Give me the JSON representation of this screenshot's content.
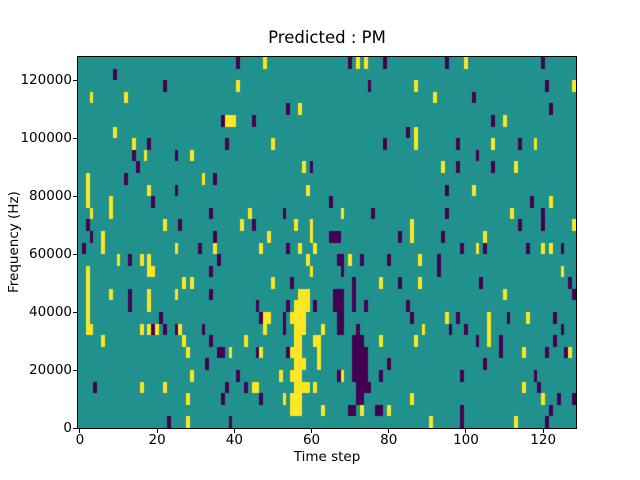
{
  "chart_data": {
    "type": "heatmap",
    "title": "Predicted : PM",
    "xlabel": "Time step",
    "ylabel": "Frequency (Hz)",
    "n_cols": 129,
    "n_rows": 32,
    "x_extent": [
      -0.5,
      128.5
    ],
    "y_extent": [
      0,
      128000
    ],
    "x_ticks": [
      0,
      20,
      40,
      60,
      80,
      100,
      120
    ],
    "x_tick_labels": [
      "0",
      "20",
      "40",
      "60",
      "80",
      "100",
      "120"
    ],
    "y_ticks": [
      0,
      20000,
      40000,
      60000,
      80000,
      100000,
      120000
    ],
    "y_tick_labels": [
      "0",
      "20000",
      "40000",
      "60000",
      "80000",
      "100000",
      "120000"
    ],
    "grid": false,
    "legend": "none",
    "colormap": {
      "name": "viridis",
      "low": "#440154",
      "mid": "#20918c",
      "high": "#fde725"
    },
    "background_value": 1,
    "cell_values": {
      "purple": 0,
      "teal": 1,
      "yellow": 2
    },
    "cells": [
      [
        41,
        31,
        0
      ],
      [
        70,
        31,
        0
      ],
      [
        79,
        31,
        0
      ],
      [
        95,
        31,
        0
      ],
      [
        120,
        31,
        0
      ],
      [
        48,
        31,
        2
      ],
      [
        72,
        31,
        2
      ],
      [
        74,
        31,
        2
      ],
      [
        100,
        31,
        2
      ],
      [
        9,
        30,
        0
      ],
      [
        22,
        29,
        0
      ],
      [
        75,
        29,
        0
      ],
      [
        121,
        29,
        0
      ],
      [
        41,
        29,
        2
      ],
      [
        87,
        29,
        2
      ],
      [
        128,
        29,
        2
      ],
      [
        102,
        28,
        0
      ],
      [
        3,
        28,
        2
      ],
      [
        12,
        28,
        2
      ],
      [
        92,
        28,
        2
      ],
      [
        54,
        27,
        0
      ],
      [
        122,
        27,
        0
      ],
      [
        57,
        27,
        2
      ],
      [
        37,
        26,
        0
      ],
      [
        45,
        26,
        0
      ],
      [
        107,
        26,
        0
      ],
      [
        38,
        26,
        2
      ],
      [
        39,
        26,
        2
      ],
      [
        40,
        26,
        2
      ],
      [
        110,
        26,
        2
      ],
      [
        85,
        25,
        0
      ],
      [
        9,
        25,
        2
      ],
      [
        87,
        25,
        2
      ],
      [
        18,
        24,
        0
      ],
      [
        38,
        24,
        0
      ],
      [
        79,
        24,
        0
      ],
      [
        98,
        24,
        0
      ],
      [
        114,
        24,
        0
      ],
      [
        14,
        24,
        2
      ],
      [
        50,
        24,
        2
      ],
      [
        87,
        24,
        2
      ],
      [
        107,
        24,
        2
      ],
      [
        118,
        24,
        2
      ],
      [
        14,
        23,
        0
      ],
      [
        25,
        23,
        0
      ],
      [
        103,
        23,
        0
      ],
      [
        17,
        23,
        2
      ],
      [
        29,
        23,
        2
      ],
      [
        15,
        22,
        0
      ],
      [
        60,
        22,
        0
      ],
      [
        98,
        22,
        0
      ],
      [
        107,
        22,
        0
      ],
      [
        58,
        22,
        2
      ],
      [
        94,
        22,
        2
      ],
      [
        113,
        22,
        2
      ],
      [
        12,
        21,
        0
      ],
      [
        35,
        21,
        0
      ],
      [
        2,
        21,
        2
      ],
      [
        32,
        21,
        2
      ],
      [
        25,
        20,
        0
      ],
      [
        95,
        20,
        0
      ],
      [
        2,
        20,
        2
      ],
      [
        18,
        20,
        2
      ],
      [
        59,
        20,
        2
      ],
      [
        102,
        20,
        2
      ],
      [
        19,
        19,
        0
      ],
      [
        65,
        19,
        0
      ],
      [
        117,
        19,
        0
      ],
      [
        2,
        19,
        2
      ],
      [
        8,
        19,
        2
      ],
      [
        122,
        19,
        2
      ],
      [
        34,
        18,
        0
      ],
      [
        53,
        18,
        0
      ],
      [
        76,
        18,
        0
      ],
      [
        95,
        18,
        0
      ],
      [
        120,
        18,
        0
      ],
      [
        3,
        18,
        2
      ],
      [
        8,
        18,
        2
      ],
      [
        44,
        18,
        2
      ],
      [
        68,
        18,
        2
      ],
      [
        112,
        18,
        2
      ],
      [
        2,
        17,
        0
      ],
      [
        26,
        17,
        0
      ],
      [
        45,
        17,
        0
      ],
      [
        114,
        17,
        0
      ],
      [
        120,
        17,
        0
      ],
      [
        22,
        17,
        2
      ],
      [
        42,
        17,
        2
      ],
      [
        56,
        17,
        2
      ],
      [
        60,
        17,
        2
      ],
      [
        86,
        17,
        2
      ],
      [
        128,
        17,
        2
      ],
      [
        3,
        16,
        0
      ],
      [
        35,
        16,
        0
      ],
      [
        65,
        16,
        0
      ],
      [
        66,
        16,
        0
      ],
      [
        67,
        16,
        0
      ],
      [
        83,
        16,
        0
      ],
      [
        94,
        16,
        0
      ],
      [
        6,
        16,
        2
      ],
      [
        49,
        16,
        2
      ],
      [
        60,
        16,
        2
      ],
      [
        86,
        16,
        2
      ],
      [
        105,
        16,
        2
      ],
      [
        1,
        15,
        0
      ],
      [
        31,
        15,
        0
      ],
      [
        54,
        15,
        0
      ],
      [
        99,
        15,
        0
      ],
      [
        105,
        15,
        0
      ],
      [
        116,
        15,
        0
      ],
      [
        125,
        15,
        0
      ],
      [
        6,
        15,
        2
      ],
      [
        25,
        15,
        2
      ],
      [
        35,
        15,
        2
      ],
      [
        47,
        15,
        2
      ],
      [
        57,
        15,
        2
      ],
      [
        61,
        15,
        2
      ],
      [
        103,
        15,
        2
      ],
      [
        120,
        15,
        2
      ],
      [
        122,
        15,
        2
      ],
      [
        13,
        14,
        0
      ],
      [
        36,
        14,
        0
      ],
      [
        67,
        14,
        0
      ],
      [
        68,
        14,
        0
      ],
      [
        73,
        14,
        0
      ],
      [
        80,
        14,
        0
      ],
      [
        93,
        14,
        0
      ],
      [
        10,
        14,
        2
      ],
      [
        16,
        14,
        2
      ],
      [
        18,
        14,
        2
      ],
      [
        59,
        14,
        2
      ],
      [
        70,
        14,
        2
      ],
      [
        88,
        14,
        2
      ],
      [
        34,
        13,
        0
      ],
      [
        68,
        13,
        0
      ],
      [
        93,
        13,
        0
      ],
      [
        2,
        13,
        2
      ],
      [
        18,
        13,
        2
      ],
      [
        19,
        13,
        2
      ],
      [
        60,
        13,
        2
      ],
      [
        125,
        13,
        2
      ],
      [
        55,
        12,
        0
      ],
      [
        71,
        12,
        0
      ],
      [
        83,
        12,
        0
      ],
      [
        104,
        12,
        0
      ],
      [
        127,
        12,
        0
      ],
      [
        2,
        12,
        2
      ],
      [
        27,
        12,
        2
      ],
      [
        29,
        12,
        2
      ],
      [
        50,
        12,
        2
      ],
      [
        78,
        12,
        2
      ],
      [
        88,
        12,
        2
      ],
      [
        13,
        11,
        0
      ],
      [
        34,
        11,
        0
      ],
      [
        66,
        11,
        0
      ],
      [
        67,
        11,
        0
      ],
      [
        68,
        11,
        0
      ],
      [
        71,
        11,
        0
      ],
      [
        128,
        11,
        0
      ],
      [
        2,
        11,
        2
      ],
      [
        8,
        11,
        2
      ],
      [
        18,
        11,
        2
      ],
      [
        25,
        11,
        2
      ],
      [
        57,
        11,
        2
      ],
      [
        58,
        11,
        2
      ],
      [
        59,
        11,
        2
      ],
      [
        110,
        11,
        2
      ],
      [
        13,
        10,
        0
      ],
      [
        46,
        10,
        0
      ],
      [
        54,
        10,
        0
      ],
      [
        61,
        10,
        0
      ],
      [
        66,
        10,
        0
      ],
      [
        67,
        10,
        0
      ],
      [
        68,
        10,
        0
      ],
      [
        71,
        10,
        0
      ],
      [
        74,
        10,
        0
      ],
      [
        85,
        10,
        0
      ],
      [
        2,
        10,
        2
      ],
      [
        18,
        10,
        2
      ],
      [
        56,
        10,
        2
      ],
      [
        57,
        10,
        2
      ],
      [
        58,
        10,
        2
      ],
      [
        59,
        10,
        2
      ],
      [
        21,
        9,
        0
      ],
      [
        47,
        9,
        0
      ],
      [
        53,
        9,
        0
      ],
      [
        67,
        9,
        0
      ],
      [
        68,
        9,
        0
      ],
      [
        86,
        9,
        0
      ],
      [
        98,
        9,
        0
      ],
      [
        111,
        9,
        0
      ],
      [
        123,
        9,
        0
      ],
      [
        2,
        9,
        2
      ],
      [
        48,
        9,
        2
      ],
      [
        49,
        9,
        2
      ],
      [
        55,
        9,
        2
      ],
      [
        56,
        9,
        2
      ],
      [
        57,
        9,
        2
      ],
      [
        58,
        9,
        2
      ],
      [
        95,
        9,
        2
      ],
      [
        106,
        9,
        2
      ],
      [
        116,
        9,
        2
      ],
      [
        19,
        8,
        0
      ],
      [
        22,
        8,
        0
      ],
      [
        25,
        8,
        0
      ],
      [
        32,
        8,
        0
      ],
      [
        53,
        8,
        0
      ],
      [
        67,
        8,
        0
      ],
      [
        68,
        8,
        0
      ],
      [
        72,
        8,
        0
      ],
      [
        96,
        8,
        0
      ],
      [
        100,
        8,
        0
      ],
      [
        125,
        8,
        0
      ],
      [
        2,
        8,
        2
      ],
      [
        3,
        8,
        2
      ],
      [
        16,
        8,
        2
      ],
      [
        18,
        8,
        2
      ],
      [
        20,
        8,
        2
      ],
      [
        26,
        8,
        2
      ],
      [
        48,
        8,
        2
      ],
      [
        56,
        8,
        2
      ],
      [
        57,
        8,
        2
      ],
      [
        58,
        8,
        2
      ],
      [
        63,
        8,
        2
      ],
      [
        89,
        8,
        2
      ],
      [
        106,
        8,
        2
      ],
      [
        34,
        7,
        0
      ],
      [
        71,
        7,
        0
      ],
      [
        72,
        7,
        0
      ],
      [
        73,
        7,
        0
      ],
      [
        103,
        7,
        0
      ],
      [
        109,
        7,
        0
      ],
      [
        123,
        7,
        0
      ],
      [
        6,
        7,
        2
      ],
      [
        27,
        7,
        2
      ],
      [
        43,
        7,
        2
      ],
      [
        56,
        7,
        2
      ],
      [
        57,
        7,
        2
      ],
      [
        61,
        7,
        2
      ],
      [
        62,
        7,
        2
      ],
      [
        78,
        7,
        2
      ],
      [
        87,
        7,
        2
      ],
      [
        106,
        7,
        2
      ],
      [
        36,
        6,
        0
      ],
      [
        37,
        6,
        0
      ],
      [
        46,
        6,
        0
      ],
      [
        54,
        6,
        0
      ],
      [
        71,
        6,
        0
      ],
      [
        72,
        6,
        0
      ],
      [
        73,
        6,
        0
      ],
      [
        74,
        6,
        0
      ],
      [
        109,
        6,
        0
      ],
      [
        121,
        6,
        0
      ],
      [
        126,
        6,
        0
      ],
      [
        28,
        6,
        2
      ],
      [
        39,
        6,
        2
      ],
      [
        47,
        6,
        2
      ],
      [
        55,
        6,
        2
      ],
      [
        56,
        6,
        2
      ],
      [
        57,
        6,
        2
      ],
      [
        62,
        6,
        2
      ],
      [
        115,
        6,
        2
      ],
      [
        127,
        6,
        2
      ],
      [
        33,
        5,
        0
      ],
      [
        71,
        5,
        0
      ],
      [
        72,
        5,
        0
      ],
      [
        73,
        5,
        0
      ],
      [
        74,
        5,
        0
      ],
      [
        80,
        5,
        0
      ],
      [
        105,
        5,
        0
      ],
      [
        56,
        5,
        2
      ],
      [
        57,
        5,
        2
      ],
      [
        58,
        5,
        2
      ],
      [
        62,
        5,
        2
      ],
      [
        41,
        4,
        0
      ],
      [
        67,
        4,
        0
      ],
      [
        71,
        4,
        0
      ],
      [
        72,
        4,
        0
      ],
      [
        73,
        4,
        0
      ],
      [
        74,
        4,
        0
      ],
      [
        78,
        4,
        0
      ],
      [
        99,
        4,
        0
      ],
      [
        118,
        4,
        0
      ],
      [
        29,
        4,
        2
      ],
      [
        52,
        4,
        2
      ],
      [
        55,
        4,
        2
      ],
      [
        56,
        4,
        2
      ],
      [
        57,
        4,
        2
      ],
      [
        68,
        4,
        2
      ],
      [
        4,
        3,
        0
      ],
      [
        38,
        3,
        0
      ],
      [
        43,
        3,
        0
      ],
      [
        72,
        3,
        0
      ],
      [
        73,
        3,
        0
      ],
      [
        74,
        3,
        0
      ],
      [
        75,
        3,
        0
      ],
      [
        119,
        3,
        0
      ],
      [
        16,
        3,
        2
      ],
      [
        22,
        3,
        2
      ],
      [
        45,
        3,
        2
      ],
      [
        46,
        3,
        2
      ],
      [
        56,
        3,
        2
      ],
      [
        57,
        3,
        2
      ],
      [
        58,
        3,
        2
      ],
      [
        59,
        3,
        2
      ],
      [
        61,
        3,
        2
      ],
      [
        115,
        3,
        2
      ],
      [
        37,
        2,
        0
      ],
      [
        47,
        2,
        0
      ],
      [
        72,
        2,
        0
      ],
      [
        73,
        2,
        0
      ],
      [
        124,
        2,
        0
      ],
      [
        128,
        2,
        0
      ],
      [
        28,
        2,
        2
      ],
      [
        53,
        2,
        2
      ],
      [
        55,
        2,
        2
      ],
      [
        56,
        2,
        2
      ],
      [
        57,
        2,
        2
      ],
      [
        86,
        2,
        2
      ],
      [
        120,
        2,
        2
      ],
      [
        70,
        1,
        0
      ],
      [
        71,
        1,
        0
      ],
      [
        77,
        1,
        0
      ],
      [
        78,
        1,
        0
      ],
      [
        99,
        1,
        0
      ],
      [
        122,
        1,
        0
      ],
      [
        55,
        1,
        2
      ],
      [
        56,
        1,
        2
      ],
      [
        57,
        1,
        2
      ],
      [
        63,
        1,
        2
      ],
      [
        73,
        1,
        2
      ],
      [
        80,
        1,
        2
      ],
      [
        23,
        0,
        0
      ],
      [
        39,
        0,
        0
      ],
      [
        99,
        0,
        0
      ],
      [
        121,
        0,
        0
      ],
      [
        28,
        0,
        2
      ],
      [
        91,
        0,
        2
      ],
      [
        113,
        0,
        2
      ]
    ]
  }
}
